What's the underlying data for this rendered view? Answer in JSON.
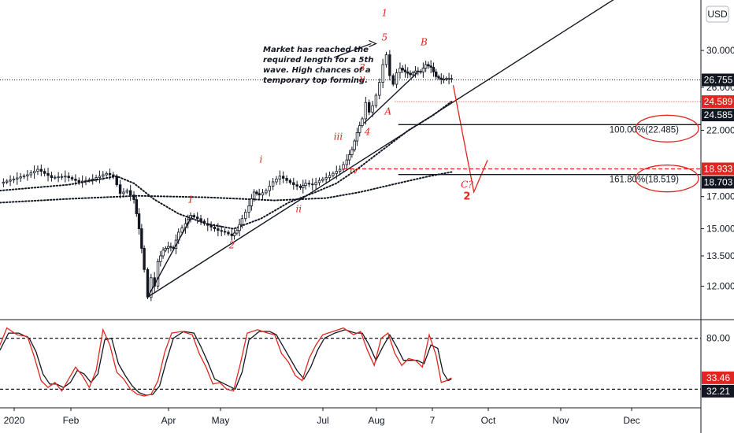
{
  "chart_data": {
    "type": "line",
    "title": "",
    "currency_label": "USD",
    "price_axis": {
      "scale": "log",
      "min": 10.6,
      "max": 36.5,
      "ticks": [
        "30.000",
        "26.000",
        "22.000",
        "17.000",
        "15.000",
        "13.500",
        "12.000"
      ]
    },
    "osc_axis": {
      "min": 0,
      "max": 100,
      "ticks": [
        "80.00"
      ]
    },
    "x_labels": [
      "2020",
      "Feb",
      "Apr",
      "May",
      "Jul",
      "Aug",
      "7",
      "Oct",
      "Nov",
      "Dec"
    ],
    "price_series": [
      {
        "d": 0,
        "v": 17.9
      },
      {
        "d": 8,
        "v": 18.2
      },
      {
        "d": 16,
        "v": 18.5
      },
      {
        "d": 22,
        "v": 18.9
      },
      {
        "d": 30,
        "v": 18.3
      },
      {
        "d": 38,
        "v": 18.4
      },
      {
        "d": 46,
        "v": 18.0
      },
      {
        "d": 54,
        "v": 18.2
      },
      {
        "d": 62,
        "v": 18.6
      },
      {
        "d": 66,
        "v": 18.4
      },
      {
        "d": 70,
        "v": 17.2
      },
      {
        "d": 74,
        "v": 17.4
      },
      {
        "d": 78,
        "v": 16.8
      },
      {
        "d": 81,
        "v": 15.0
      },
      {
        "d": 84,
        "v": 12.8
      },
      {
        "d": 86,
        "v": 11.5
      },
      {
        "d": 88,
        "v": 12.4
      },
      {
        "d": 90,
        "v": 12.0
      },
      {
        "d": 92,
        "v": 13.2
      },
      {
        "d": 95,
        "v": 13.8
      },
      {
        "d": 98,
        "v": 14.0
      },
      {
        "d": 101,
        "v": 13.9
      },
      {
        "d": 104,
        "v": 14.8
      },
      {
        "d": 108,
        "v": 15.3
      },
      {
        "d": 111,
        "v": 15.8
      },
      {
        "d": 115,
        "v": 15.6
      },
      {
        "d": 119,
        "v": 15.3
      },
      {
        "d": 123,
        "v": 15.1
      },
      {
        "d": 127,
        "v": 14.9
      },
      {
        "d": 131,
        "v": 14.8
      },
      {
        "d": 135,
        "v": 14.6
      },
      {
        "d": 138,
        "v": 14.9
      },
      {
        "d": 141,
        "v": 15.6
      },
      {
        "d": 145,
        "v": 16.4
      },
      {
        "d": 148,
        "v": 17.3
      },
      {
        "d": 151,
        "v": 17.1
      },
      {
        "d": 155,
        "v": 17.4
      },
      {
        "d": 159,
        "v": 18.0
      },
      {
        "d": 163,
        "v": 18.4
      },
      {
        "d": 167,
        "v": 18.1
      },
      {
        "d": 171,
        "v": 17.8
      },
      {
        "d": 175,
        "v": 17.6
      },
      {
        "d": 178,
        "v": 17.9
      },
      {
        "d": 182,
        "v": 17.8
      },
      {
        "d": 186,
        "v": 18.1
      },
      {
        "d": 190,
        "v": 18.3
      },
      {
        "d": 194,
        "v": 18.6
      },
      {
        "d": 198,
        "v": 18.9
      },
      {
        "d": 202,
        "v": 19.6
      },
      {
        "d": 205,
        "v": 20.4
      },
      {
        "d": 208,
        "v": 21.8
      },
      {
        "d": 211,
        "v": 23.0
      },
      {
        "d": 213,
        "v": 24.5
      },
      {
        "d": 215,
        "v": 23.6
      },
      {
        "d": 217,
        "v": 24.2
      },
      {
        "d": 219,
        "v": 25.2
      },
      {
        "d": 221,
        "v": 26.5
      },
      {
        "d": 223,
        "v": 28.4
      },
      {
        "d": 225,
        "v": 29.5
      },
      {
        "d": 227,
        "v": 27.2
      },
      {
        "d": 229,
        "v": 26.3
      },
      {
        "d": 231,
        "v": 27.5
      },
      {
        "d": 233,
        "v": 28.0
      },
      {
        "d": 236,
        "v": 27.6
      },
      {
        "d": 239,
        "v": 27.3
      },
      {
        "d": 242,
        "v": 27.7
      },
      {
        "d": 245,
        "v": 27.6
      },
      {
        "d": 248,
        "v": 28.4
      },
      {
        "d": 251,
        "v": 28.1
      },
      {
        "d": 254,
        "v": 27.1
      },
      {
        "d": 257,
        "v": 26.8
      },
      {
        "d": 260,
        "v": 26.9
      },
      {
        "d": 263,
        "v": 26.9
      }
    ],
    "ma_fast_dotted": [
      {
        "d": 0,
        "v": 17.4
      },
      {
        "d": 40,
        "v": 17.8
      },
      {
        "d": 68,
        "v": 18.4
      },
      {
        "d": 78,
        "v": 17.9
      },
      {
        "d": 90,
        "v": 16.8
      },
      {
        "d": 104,
        "v": 15.9
      },
      {
        "d": 120,
        "v": 15.3
      },
      {
        "d": 136,
        "v": 15.0
      },
      {
        "d": 152,
        "v": 15.6
      },
      {
        "d": 168,
        "v": 16.6
      },
      {
        "d": 184,
        "v": 17.3
      },
      {
        "d": 196,
        "v": 17.9
      },
      {
        "d": 208,
        "v": 18.9
      },
      {
        "d": 222,
        "v": 20.3
      },
      {
        "d": 238,
        "v": 22.0
      },
      {
        "d": 252,
        "v": 23.3
      },
      {
        "d": 263,
        "v": 24.585
      }
    ],
    "ma_slow_dotted": [
      {
        "d": 0,
        "v": 16.6
      },
      {
        "d": 40,
        "v": 16.85
      },
      {
        "d": 80,
        "v": 17.05
      },
      {
        "d": 120,
        "v": 16.95
      },
      {
        "d": 160,
        "v": 16.75
      },
      {
        "d": 190,
        "v": 16.9
      },
      {
        "d": 210,
        "v": 17.3
      },
      {
        "d": 230,
        "v": 17.85
      },
      {
        "d": 250,
        "v": 18.4
      },
      {
        "d": 263,
        "v": 18.703
      }
    ],
    "oscillator": {
      "overbought": 80,
      "oversold": 20,
      "k": [
        {
          "d": 0,
          "v": 72
        },
        {
          "d": 4,
          "v": 92
        },
        {
          "d": 10,
          "v": 84
        },
        {
          "d": 16,
          "v": 82
        },
        {
          "d": 20,
          "v": 58
        },
        {
          "d": 24,
          "v": 30
        },
        {
          "d": 28,
          "v": 22
        },
        {
          "d": 32,
          "v": 28
        },
        {
          "d": 36,
          "v": 18
        },
        {
          "d": 40,
          "v": 32
        },
        {
          "d": 44,
          "v": 46
        },
        {
          "d": 48,
          "v": 36
        },
        {
          "d": 52,
          "v": 22
        },
        {
          "d": 56,
          "v": 42
        },
        {
          "d": 60,
          "v": 90
        },
        {
          "d": 64,
          "v": 72
        },
        {
          "d": 68,
          "v": 40
        },
        {
          "d": 72,
          "v": 32
        },
        {
          "d": 76,
          "v": 20
        },
        {
          "d": 80,
          "v": 14
        },
        {
          "d": 84,
          "v": 12
        },
        {
          "d": 88,
          "v": 14
        },
        {
          "d": 92,
          "v": 30
        },
        {
          "d": 96,
          "v": 64
        },
        {
          "d": 100,
          "v": 86
        },
        {
          "d": 106,
          "v": 88
        },
        {
          "d": 112,
          "v": 84
        },
        {
          "d": 116,
          "v": 62
        },
        {
          "d": 120,
          "v": 46
        },
        {
          "d": 124,
          "v": 26
        },
        {
          "d": 128,
          "v": 28
        },
        {
          "d": 132,
          "v": 20
        },
        {
          "d": 136,
          "v": 18
        },
        {
          "d": 140,
          "v": 50
        },
        {
          "d": 144,
          "v": 86
        },
        {
          "d": 150,
          "v": 90
        },
        {
          "d": 156,
          "v": 86
        },
        {
          "d": 160,
          "v": 84
        },
        {
          "d": 164,
          "v": 62
        },
        {
          "d": 168,
          "v": 52
        },
        {
          "d": 172,
          "v": 36
        },
        {
          "d": 176,
          "v": 30
        },
        {
          "d": 180,
          "v": 56
        },
        {
          "d": 184,
          "v": 72
        },
        {
          "d": 188,
          "v": 84
        },
        {
          "d": 194,
          "v": 88
        },
        {
          "d": 200,
          "v": 92
        },
        {
          "d": 206,
          "v": 84
        },
        {
          "d": 210,
          "v": 88
        },
        {
          "d": 214,
          "v": 66
        },
        {
          "d": 218,
          "v": 48
        },
        {
          "d": 222,
          "v": 80
        },
        {
          "d": 226,
          "v": 86
        },
        {
          "d": 230,
          "v": 62
        },
        {
          "d": 234,
          "v": 48
        },
        {
          "d": 238,
          "v": 56
        },
        {
          "d": 242,
          "v": 54
        },
        {
          "d": 246,
          "v": 46
        },
        {
          "d": 250,
          "v": 84
        },
        {
          "d": 254,
          "v": 60
        },
        {
          "d": 257,
          "v": 28
        },
        {
          "d": 260,
          "v": 30
        },
        {
          "d": 263,
          "v": 33.46
        }
      ],
      "d_line": [
        {
          "d": 0,
          "v": 66
        },
        {
          "d": 5,
          "v": 86
        },
        {
          "d": 11,
          "v": 86
        },
        {
          "d": 17,
          "v": 80
        },
        {
          "d": 21,
          "v": 64
        },
        {
          "d": 25,
          "v": 38
        },
        {
          "d": 29,
          "v": 26
        },
        {
          "d": 33,
          "v": 26
        },
        {
          "d": 37,
          "v": 22
        },
        {
          "d": 41,
          "v": 28
        },
        {
          "d": 45,
          "v": 42
        },
        {
          "d": 49,
          "v": 38
        },
        {
          "d": 53,
          "v": 28
        },
        {
          "d": 57,
          "v": 38
        },
        {
          "d": 61,
          "v": 78
        },
        {
          "d": 65,
          "v": 80
        },
        {
          "d": 69,
          "v": 50
        },
        {
          "d": 73,
          "v": 36
        },
        {
          "d": 77,
          "v": 24
        },
        {
          "d": 81,
          "v": 16
        },
        {
          "d": 85,
          "v": 13
        },
        {
          "d": 89,
          "v": 14
        },
        {
          "d": 93,
          "v": 24
        },
        {
          "d": 97,
          "v": 54
        },
        {
          "d": 101,
          "v": 80
        },
        {
          "d": 107,
          "v": 88
        },
        {
          "d": 113,
          "v": 86
        },
        {
          "d": 117,
          "v": 70
        },
        {
          "d": 121,
          "v": 52
        },
        {
          "d": 125,
          "v": 32
        },
        {
          "d": 129,
          "v": 28
        },
        {
          "d": 133,
          "v": 24
        },
        {
          "d": 137,
          "v": 20
        },
        {
          "d": 141,
          "v": 40
        },
        {
          "d": 145,
          "v": 78
        },
        {
          "d": 151,
          "v": 88
        },
        {
          "d": 157,
          "v": 88
        },
        {
          "d": 161,
          "v": 84
        },
        {
          "d": 165,
          "v": 70
        },
        {
          "d": 169,
          "v": 56
        },
        {
          "d": 173,
          "v": 42
        },
        {
          "d": 177,
          "v": 32
        },
        {
          "d": 181,
          "v": 46
        },
        {
          "d": 185,
          "v": 66
        },
        {
          "d": 189,
          "v": 80
        },
        {
          "d": 195,
          "v": 86
        },
        {
          "d": 201,
          "v": 90
        },
        {
          "d": 207,
          "v": 86
        },
        {
          "d": 211,
          "v": 86
        },
        {
          "d": 215,
          "v": 72
        },
        {
          "d": 219,
          "v": 54
        },
        {
          "d": 223,
          "v": 70
        },
        {
          "d": 227,
          "v": 84
        },
        {
          "d": 231,
          "v": 70
        },
        {
          "d": 235,
          "v": 54
        },
        {
          "d": 239,
          "v": 54
        },
        {
          "d": 243,
          "v": 54
        },
        {
          "d": 247,
          "v": 50
        },
        {
          "d": 251,
          "v": 72
        },
        {
          "d": 255,
          "v": 68
        },
        {
          "d": 258,
          "v": 40
        },
        {
          "d": 261,
          "v": 30
        },
        {
          "d": 263,
          "v": 32.21
        }
      ]
    },
    "trendlines": [
      {
        "from": {
          "d": 86,
          "v": 11.5
        },
        "to": {
          "d": 112,
          "v": 15.8
        }
      },
      {
        "from": {
          "d": 86,
          "v": 11.5
        },
        "to": {
          "d": 390,
          "v": 42.0
        }
      },
      {
        "from": {
          "d": 212,
          "v": 22.6
        },
        "to": {
          "d": 243,
          "v": 27.5
        }
      }
    ],
    "fib_levels": [
      {
        "text": "100.00%(22.485)",
        "value": 22.485,
        "from_d": 232
      },
      {
        "text": "161.80%(18.519)",
        "value": 18.519,
        "from_d": 232
      }
    ],
    "forecast_path": [
      {
        "d": 264,
        "v": 26.2
      },
      {
        "d": 276,
        "v": 17.3
      },
      {
        "d": 284,
        "v": 19.6
      }
    ],
    "current_line": {
      "value": 26.755
    },
    "dotted_red_line": {
      "value": 24.589,
      "from_d": 230
    },
    "dashed_red_line": {
      "value": 18.933,
      "from_d": 200
    },
    "price_badges": [
      {
        "text": "26.755",
        "value": 26.755,
        "style": "dark"
      },
      {
        "text": "24.589",
        "value": 24.589,
        "style": "red"
      },
      {
        "text": "24.585",
        "value": 24.585,
        "style": "dark"
      },
      {
        "text": "18.933",
        "value": 18.933,
        "style": "red"
      },
      {
        "text": "18.703",
        "value": 18.703,
        "style": "dark"
      }
    ],
    "osc_badges": [
      {
        "text": "33.46",
        "value": 33.46,
        "style": "red"
      },
      {
        "text": "32.21",
        "value": 32.21,
        "style": "dark"
      }
    ],
    "wave_labels": [
      {
        "text": "1",
        "d": 111,
        "v": 16.6,
        "style": "italic"
      },
      {
        "text": "2",
        "d": 135,
        "v": 13.9,
        "style": "italic"
      },
      {
        "text": "i",
        "d": 152,
        "v": 19.4,
        "style": "italic"
      },
      {
        "text": "ii",
        "d": 174,
        "v": 16.0,
        "style": "italic"
      },
      {
        "text": "iii",
        "d": 197,
        "v": 21.2,
        "style": "italic"
      },
      {
        "text": "iv",
        "d": 206,
        "v": 18.6,
        "style": "italic"
      },
      {
        "text": "3",
        "d": 211,
        "v": 27.7,
        "style": "italic"
      },
      {
        "text": "v",
        "d": 211,
        "v": 26.6,
        "style": "italic"
      },
      {
        "text": "4",
        "d": 214,
        "v": 21.6,
        "style": "italic"
      },
      {
        "text": "5",
        "d": 224,
        "v": 31.2,
        "style": "italic"
      },
      {
        "text": "1",
        "d": 224,
        "v": 34.3,
        "style": "italic"
      },
      {
        "text": "A",
        "d": 226,
        "v": 23.4,
        "style": "italic"
      },
      {
        "text": "B",
        "d": 247,
        "v": 30.6,
        "style": "italic"
      },
      {
        "text": "C?",
        "d": 272,
        "v": 17.6,
        "style": "italic"
      },
      {
        "text": "2",
        "d": 272,
        "v": 16.8,
        "style": "bold"
      }
    ],
    "annotation": {
      "lines": [
        "Market has reached the",
        "required length for a 5th",
        "wave. High chances of a",
        "temporary top forming."
      ],
      "arrow_to": {
        "d": 219,
        "v": 30.8
      }
    },
    "colors": {
      "up": "#131722",
      "down": "#131722",
      "red": "#e0261f",
      "badge_dark": "#131722"
    }
  }
}
